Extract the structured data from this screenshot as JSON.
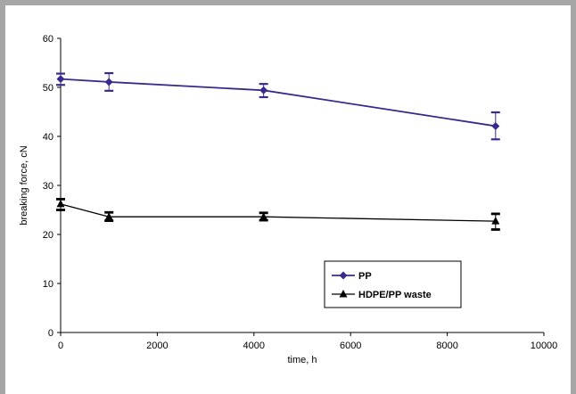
{
  "chart_data": {
    "type": "line",
    "title": "",
    "xlabel": "time, h",
    "ylabel": "breaking force, cN",
    "xlim": [
      0,
      10000
    ],
    "ylim": [
      0,
      60
    ],
    "xticks": [
      0,
      2000,
      4000,
      6000,
      8000,
      10000
    ],
    "yticks": [
      0,
      10,
      20,
      30,
      40,
      50,
      60
    ],
    "grid": false,
    "legend_position": "bottom-center",
    "series": [
      {
        "name": "PP",
        "color": "#3b2a8e",
        "marker": "diamond",
        "x": [
          0,
          1000,
          4200,
          9000
        ],
        "y": [
          51.7,
          51.1,
          49.4,
          42.1
        ],
        "error_low": [
          50.5,
          49.3,
          48.0,
          39.4
        ],
        "error_high": [
          52.8,
          52.9,
          50.7,
          44.9
        ]
      },
      {
        "name": "HDPE/PP waste",
        "color": "#000000",
        "marker": "triangle",
        "x": [
          0,
          1000,
          4200,
          9000
        ],
        "y": [
          26.2,
          23.6,
          23.6,
          22.7
        ],
        "error_low": [
          25.0,
          22.8,
          22.9,
          21.0
        ],
        "error_high": [
          27.2,
          24.5,
          24.4,
          24.2
        ]
      }
    ]
  }
}
